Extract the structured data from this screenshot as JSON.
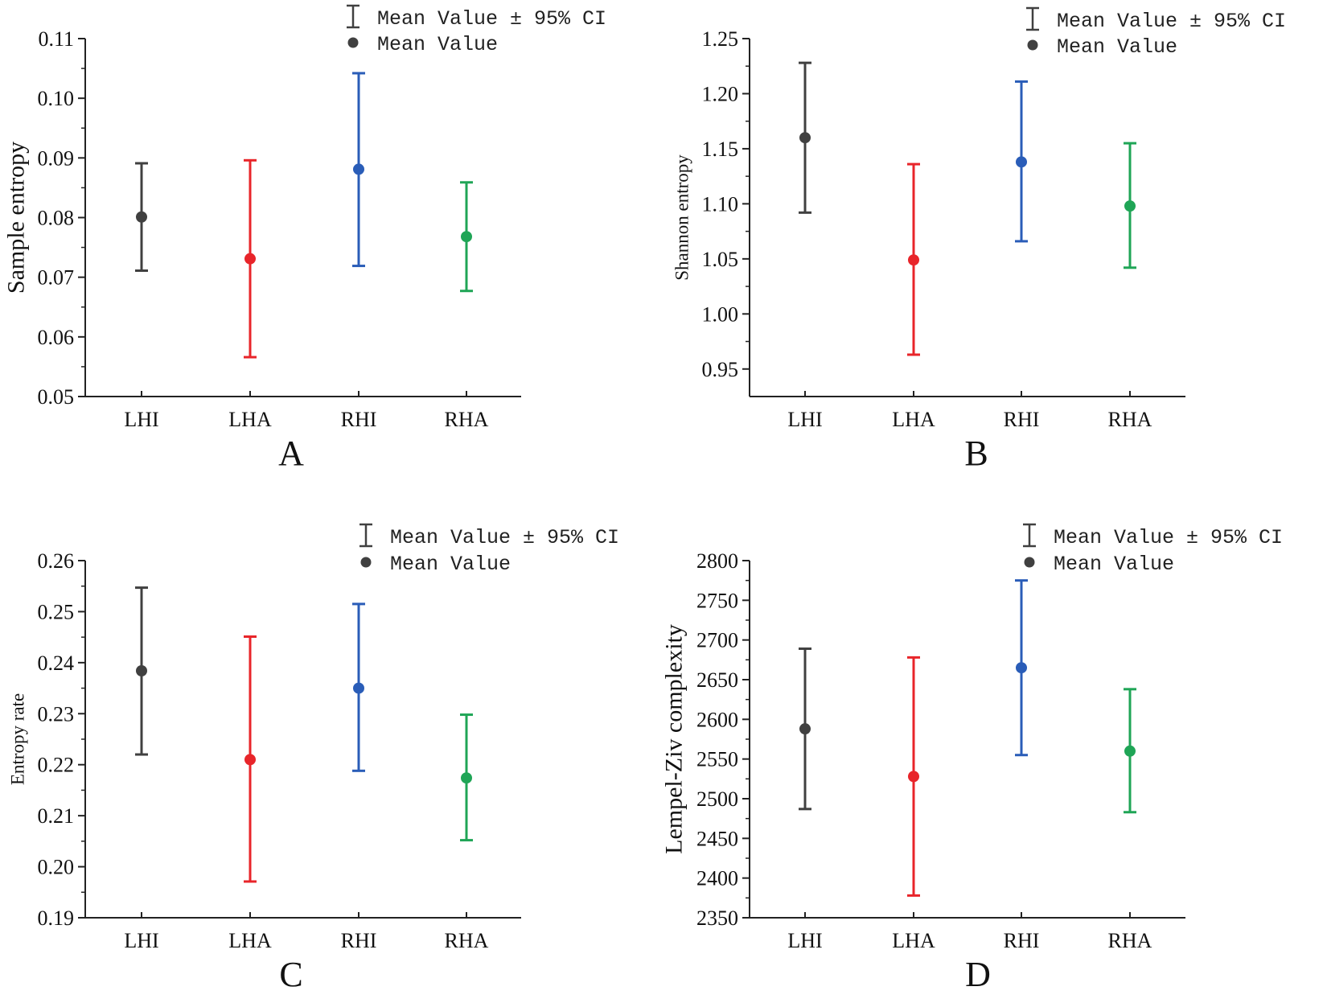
{
  "figure": {
    "colors": {
      "LHI": "#404040",
      "LHA": "#e8252a",
      "RHI": "#2a5db8",
      "RHA": "#1fa556"
    }
  },
  "chart_data": [
    {
      "id": "A",
      "type": "scatter",
      "panel_label": "A",
      "ylabel": "Sample entropy",
      "xlabel": "",
      "categories": [
        "LHI",
        "LHA",
        "RHI",
        "RHA"
      ],
      "ylim": [
        0.05,
        0.11
      ],
      "yticks": [
        0.05,
        0.06,
        0.07,
        0.08,
        0.09,
        0.1,
        0.11
      ],
      "ytick_labels": [
        "0.05",
        "0.06",
        "0.07",
        "0.08",
        "0.09",
        "0.10",
        "0.11"
      ],
      "series": [
        {
          "name": "Mean Value",
          "values": [
            0.0801,
            0.0731,
            0.0881,
            0.0768
          ]
        },
        {
          "name": "Mean Value ± 95% CI",
          "lower": [
            0.0711,
            0.0566,
            0.0719,
            0.0677
          ],
          "upper": [
            0.0891,
            0.0896,
            0.1042,
            0.0859
          ]
        }
      ],
      "legend": {
        "ci_label": "Mean Value ± 95% CI",
        "mean_label": "Mean Value",
        "position": "top-right"
      }
    },
    {
      "id": "B",
      "type": "scatter",
      "panel_label": "B",
      "ylabel": "Shannon entropy",
      "xlabel": "",
      "categories": [
        "LHI",
        "LHA",
        "RHI",
        "RHA"
      ],
      "ylim": [
        0.925,
        1.25
      ],
      "yticks": [
        0.95,
        1.0,
        1.05,
        1.1,
        1.15,
        1.2,
        1.25
      ],
      "ytick_labels": [
        "0.95",
        "1.00",
        "1.05",
        "1.10",
        "1.15",
        "1.20",
        "1.25"
      ],
      "series": [
        {
          "name": "Mean Value",
          "values": [
            1.16,
            1.049,
            1.138,
            1.098
          ]
        },
        {
          "name": "Mean Value ± 95% CI",
          "lower": [
            1.092,
            0.963,
            1.066,
            1.042
          ],
          "upper": [
            1.228,
            1.136,
            1.211,
            1.155
          ]
        }
      ],
      "legend": {
        "ci_label": "Mean Value ± 95% CI",
        "mean_label": "Mean Value",
        "position": "top-right"
      }
    },
    {
      "id": "C",
      "type": "scatter",
      "panel_label": "C",
      "ylabel": "Entropy rate",
      "xlabel": "",
      "categories": [
        "LHI",
        "LHA",
        "RHI",
        "RHA"
      ],
      "ylim": [
        0.19,
        0.26
      ],
      "yticks": [
        0.19,
        0.2,
        0.21,
        0.22,
        0.23,
        0.24,
        0.25,
        0.26
      ],
      "ytick_labels": [
        "0.19",
        "0.20",
        "0.21",
        "0.22",
        "0.23",
        "0.24",
        "0.25",
        "0.26"
      ],
      "series": [
        {
          "name": "Mean Value",
          "values": [
            0.2384,
            0.221,
            0.235,
            0.2174
          ]
        },
        {
          "name": "Mean Value ± 95% CI",
          "lower": [
            0.222,
            0.1971,
            0.2188,
            0.2052
          ],
          "upper": [
            0.2547,
            0.2451,
            0.2515,
            0.2298
          ]
        }
      ],
      "legend": {
        "ci_label": "Mean Value ± 95% CI",
        "mean_label": "Mean Value",
        "position": "top-right"
      }
    },
    {
      "id": "D",
      "type": "scatter",
      "panel_label": "D",
      "ylabel": "Lempel-Ziv complexity",
      "xlabel": "",
      "categories": [
        "LHI",
        "LHA",
        "RHI",
        "RHA"
      ],
      "ylim": [
        2350,
        2800
      ],
      "yticks": [
        2350,
        2400,
        2450,
        2500,
        2550,
        2600,
        2650,
        2700,
        2750,
        2800
      ],
      "ytick_labels": [
        "2350",
        "2400",
        "2450",
        "2500",
        "2550",
        "2600",
        "2650",
        "2700",
        "2750",
        "2800"
      ],
      "series": [
        {
          "name": "Mean Value",
          "values": [
            2588,
            2528,
            2665,
            2560
          ]
        },
        {
          "name": "Mean Value ± 95% CI",
          "lower": [
            2487,
            2378,
            2555,
            2483
          ],
          "upper": [
            2689,
            2678,
            2775,
            2638
          ]
        }
      ],
      "legend": {
        "ci_label": "Mean Value ± 95% CI",
        "mean_label": "Mean Value",
        "position": "top-right"
      }
    }
  ]
}
